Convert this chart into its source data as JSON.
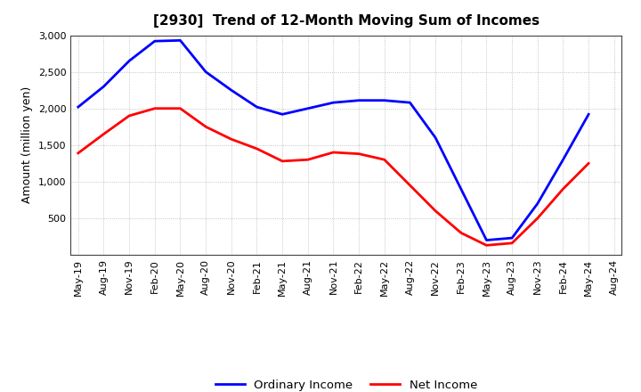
{
  "title": "[2930]  Trend of 12-Month Moving Sum of Incomes",
  "ylabel": "Amount (million yen)",
  "x_labels": [
    "May-19",
    "Aug-19",
    "Nov-19",
    "Feb-20",
    "May-20",
    "Aug-20",
    "Nov-20",
    "Feb-21",
    "May-21",
    "Aug-21",
    "Nov-21",
    "Feb-22",
    "May-22",
    "Aug-22",
    "Nov-22",
    "Feb-23",
    "May-23",
    "Aug-23",
    "Nov-23",
    "Feb-24",
    "May-24",
    "Aug-24"
  ],
  "ordinary_income": [
    2020,
    2300,
    2650,
    2920,
    2930,
    2500,
    2250,
    2020,
    1920,
    2000,
    2080,
    2110,
    2110,
    2080,
    1600,
    900,
    200,
    230,
    700,
    1300,
    1920,
    null
  ],
  "net_income": [
    1390,
    1650,
    1900,
    2000,
    2000,
    1750,
    1580,
    1450,
    1280,
    1300,
    1400,
    1380,
    1300,
    950,
    600,
    300,
    130,
    160,
    500,
    900,
    1250,
    null
  ],
  "ordinary_income_color": "#0000FF",
  "net_income_color": "#FF0000",
  "ylim": [
    0,
    3000
  ],
  "yticks": [
    500,
    1000,
    1500,
    2000,
    2500,
    3000
  ],
  "background_color": "#FFFFFF",
  "grid_color": "#AAAAAA",
  "title_fontsize": 11,
  "axis_label_fontsize": 9,
  "tick_fontsize": 8,
  "legend_labels": [
    "Ordinary Income",
    "Net Income"
  ],
  "linewidth": 2.0
}
